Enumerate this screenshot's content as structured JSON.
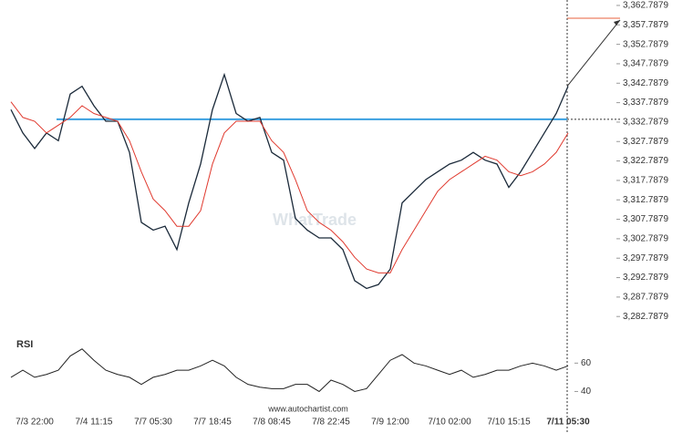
{
  "chart_data": [
    {
      "type": "line",
      "categories": [
        null,
        null,
        "7/3 22:00",
        null,
        null,
        null,
        null,
        "7/4 11:15",
        null,
        null,
        null,
        null,
        "7/7 05:30",
        null,
        null,
        null,
        null,
        "7/7 18:45",
        null,
        null,
        null,
        null,
        "7/8 08:45",
        null,
        null,
        null,
        null,
        "7/8 22:45",
        null,
        null,
        null,
        null,
        "7/9 12:00",
        null,
        null,
        null,
        null,
        "7/10 02:00",
        null,
        null,
        null,
        null,
        "7/10 15:15",
        null,
        null,
        null,
        null,
        "7/11 05:30"
      ],
      "series": [
        {
          "color": "#1b2a3a",
          "values": [
            3336,
            3330,
            3326,
            3330,
            3328,
            3340,
            3342,
            3337,
            3333,
            3333,
            3325,
            3307,
            3305,
            3306,
            3300,
            3312,
            3322,
            3336,
            3345,
            3335,
            3333,
            3334,
            3325,
            3323,
            3308,
            3305,
            3303,
            3303,
            3300,
            3292,
            3290,
            3291,
            3295,
            3312,
            3315,
            3318,
            3320,
            3322,
            3323,
            3325,
            3323,
            3322,
            3316,
            3320,
            3325,
            3330,
            3335,
            3342
          ]
        },
        {
          "color": "#e03a2f",
          "values": [
            3338,
            3334,
            3333,
            3330,
            3332,
            3334,
            3337,
            3335,
            3334,
            3333,
            3328,
            3320,
            3313,
            3310,
            3306,
            3306,
            3310,
            3322,
            3330,
            3333,
            3333,
            3333,
            3328,
            3325,
            3318,
            3310,
            3307,
            3305,
            3302,
            3298,
            3295,
            3294,
            3294,
            3300,
            3305,
            3310,
            3315,
            3318,
            3320,
            3322,
            3324,
            3323,
            3320,
            3319,
            3320,
            3322,
            3325,
            3330
          ]
        }
      ],
      "resistance": {
        "value": 3333.5,
        "color": "#3aa0e0"
      },
      "target": {
        "value": 3359.5,
        "color": "#e8603c"
      },
      "ylim": [
        3279.7879,
        3364.1879
      ],
      "yticks": [
        {
          "value": 3282.7879,
          "label": "3,282.7879"
        },
        {
          "value": 3287.7879,
          "label": "3,287.7879"
        },
        {
          "value": 3292.7879,
          "label": "3,292.7879"
        },
        {
          "value": 3297.7879,
          "label": "3,297.7879"
        },
        {
          "value": 3302.7879,
          "label": "3,302.7879"
        },
        {
          "value": 3307.7879,
          "label": "3,307.7879"
        },
        {
          "value": 3312.7879,
          "label": "3,312.7879"
        },
        {
          "value": 3317.7879,
          "label": "3,317.7879"
        },
        {
          "value": 3322.7879,
          "label": "3,322.7879"
        },
        {
          "value": 3327.7879,
          "label": "3,327.7879"
        },
        {
          "value": 3332.7879,
          "label": "3,332.7879"
        },
        {
          "value": 3337.7879,
          "label": "3,337.7879"
        },
        {
          "value": 3342.7879,
          "label": "3,342.7879"
        },
        {
          "value": 3347.7879,
          "label": "3,347.7879"
        },
        {
          "value": 3352.7879,
          "label": "3,352.7879"
        },
        {
          "value": 3357.7879,
          "label": "3,357.7879"
        },
        {
          "value": 3362.7879,
          "label": "3,362.7879"
        }
      ],
      "watermark": "WhatTrade",
      "footer": "www.autochartist.com"
    },
    {
      "type": "line",
      "title": "RSI",
      "series": [
        {
          "color": "#222222",
          "values": [
            50,
            55,
            50,
            52,
            55,
            65,
            70,
            62,
            55,
            52,
            50,
            45,
            50,
            52,
            55,
            55,
            58,
            62,
            58,
            50,
            45,
            43,
            42,
            42,
            45,
            45,
            40,
            48,
            45,
            40,
            42,
            52,
            62,
            66,
            60,
            58,
            55,
            52,
            55,
            50,
            52,
            55,
            55,
            58,
            60,
            58,
            55,
            58
          ]
        }
      ],
      "ylim": [
        30,
        75
      ],
      "yticks": [
        40,
        60
      ]
    }
  ]
}
